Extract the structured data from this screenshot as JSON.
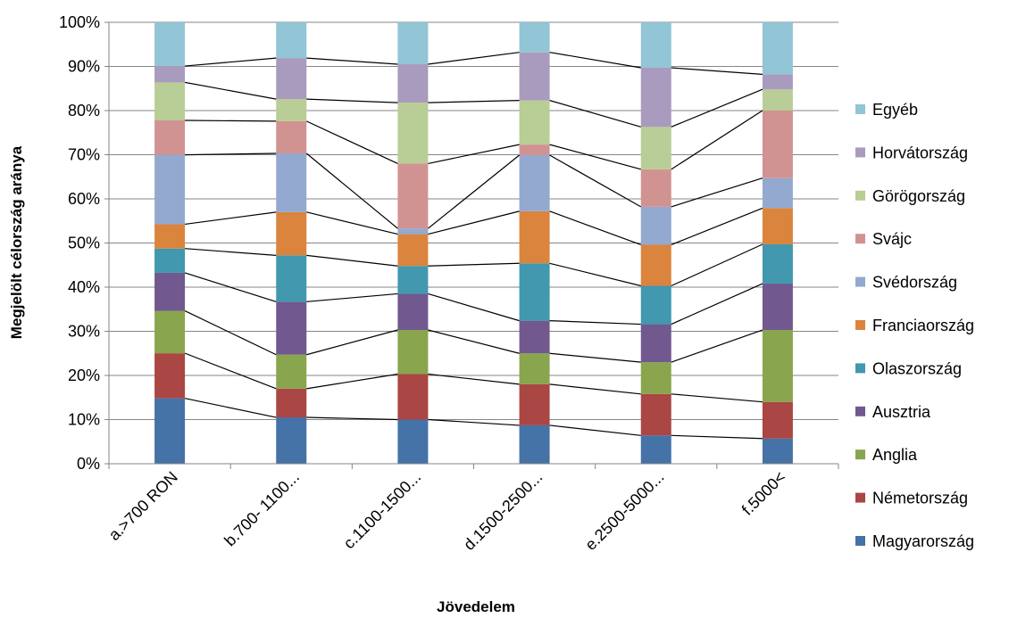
{
  "chart_data": {
    "type": "bar",
    "stacked": "percent",
    "xlabel": "Jövedelem",
    "ylabel": "Megjelölt célország aránya",
    "ylim": [
      0,
      100
    ],
    "y_ticks": [
      "0%",
      "10%",
      "20%",
      "30%",
      "40%",
      "50%",
      "60%",
      "70%",
      "80%",
      "90%",
      "100%"
    ],
    "grid": true,
    "legend_position": "right",
    "series_lines": true,
    "categories": [
      "a.>700 RON",
      "b.700- 1100...",
      "c.1100-1500...",
      "d.1500-2500...",
      "e.2500-5000...",
      "f.5000<"
    ],
    "series": [
      {
        "name": "Magyarország",
        "color": "#4572A7",
        "values": [
          14.8,
          10.5,
          10.0,
          8.7,
          6.4,
          5.7
        ]
      },
      {
        "name": "Németország",
        "color": "#AA4643",
        "values": [
          10.2,
          6.5,
          10.3,
          9.3,
          9.4,
          8.3
        ]
      },
      {
        "name": "Anglia",
        "color": "#89A54E",
        "values": [
          9.6,
          7.7,
          10.0,
          7.0,
          7.2,
          16.3
        ]
      },
      {
        "name": "Ausztria",
        "color": "#71588F",
        "values": [
          8.6,
          12.0,
          8.2,
          7.4,
          8.6,
          10.5
        ]
      },
      {
        "name": "Olaszország",
        "color": "#4198AF",
        "values": [
          5.5,
          10.5,
          6.3,
          13.0,
          8.7,
          8.9
        ]
      },
      {
        "name": "Franciaország",
        "color": "#DB843D",
        "values": [
          5.5,
          9.8,
          7.2,
          11.8,
          9.3,
          8.2
        ]
      },
      {
        "name": "Svédország",
        "color": "#93A9CF",
        "values": [
          15.7,
          13.3,
          1.3,
          12.7,
          8.6,
          6.8
        ]
      },
      {
        "name": "Svájc",
        "color": "#D19392",
        "values": [
          7.8,
          7.3,
          14.7,
          2.4,
          8.5,
          15.3
        ]
      },
      {
        "name": "Görögország",
        "color": "#B9CD96",
        "values": [
          8.6,
          5.0,
          13.8,
          10.0,
          9.6,
          4.8
        ]
      },
      {
        "name": "Horvátország",
        "color": "#A99BBD",
        "values": [
          3.7,
          9.3,
          8.7,
          10.9,
          13.4,
          3.4
        ]
      },
      {
        "name": "Egyéb",
        "color": "#92C5D6",
        "values": [
          9.9,
          8.1,
          9.5,
          6.8,
          10.3,
          11.8
        ]
      }
    ]
  }
}
